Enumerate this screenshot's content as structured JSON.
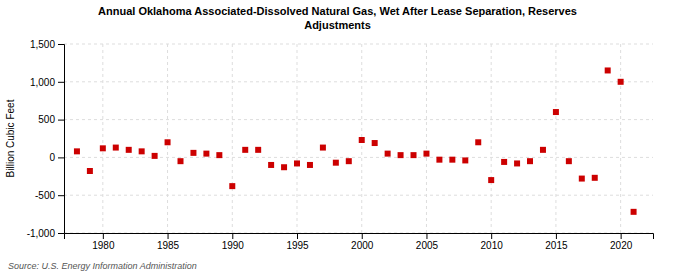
{
  "chart_data": {
    "type": "scatter",
    "title": "Annual Oklahoma Associated-Dissolved Natural Gas, Wet After Lease Separation, Reserves\nAdjustments",
    "y_label": "Billion Cubic Feet",
    "source": "Source: U.S. Energy Information Administration",
    "x": [
      1978,
      1979,
      1980,
      1981,
      1982,
      1983,
      1984,
      1985,
      1986,
      1987,
      1988,
      1989,
      1990,
      1991,
      1992,
      1993,
      1994,
      1995,
      1996,
      1997,
      1998,
      1999,
      2000,
      2001,
      2002,
      2003,
      2004,
      2005,
      2006,
      2007,
      2008,
      2009,
      2010,
      2011,
      2012,
      2013,
      2014,
      2015,
      2016,
      2017,
      2018,
      2019,
      2020,
      2021
    ],
    "values": [
      80,
      -180,
      120,
      130,
      100,
      80,
      20,
      200,
      -50,
      60,
      50,
      30,
      -380,
      100,
      100,
      -100,
      -130,
      -80,
      -100,
      130,
      -70,
      -50,
      230,
      190,
      50,
      30,
      30,
      50,
      -30,
      -30,
      -40,
      200,
      -300,
      -60,
      -80,
      -50,
      100,
      600,
      -50,
      -280,
      -270,
      1150,
      1000,
      -720
    ],
    "color": "#cc0000",
    "marker": "square",
    "xlim": [
      1977,
      2022.5
    ],
    "xticks": [
      1980,
      1985,
      1990,
      1995,
      2000,
      2005,
      2010,
      2015,
      2020
    ],
    "ylim": [
      -1000,
      1500
    ],
    "yticks": [
      {
        "value": -1000,
        "label": "-1,000"
      },
      -500,
      0,
      500,
      {
        "value": 1000,
        "label": "1,000"
      },
      {
        "value": 1500,
        "label": "1,500"
      }
    ],
    "grid": true
  }
}
